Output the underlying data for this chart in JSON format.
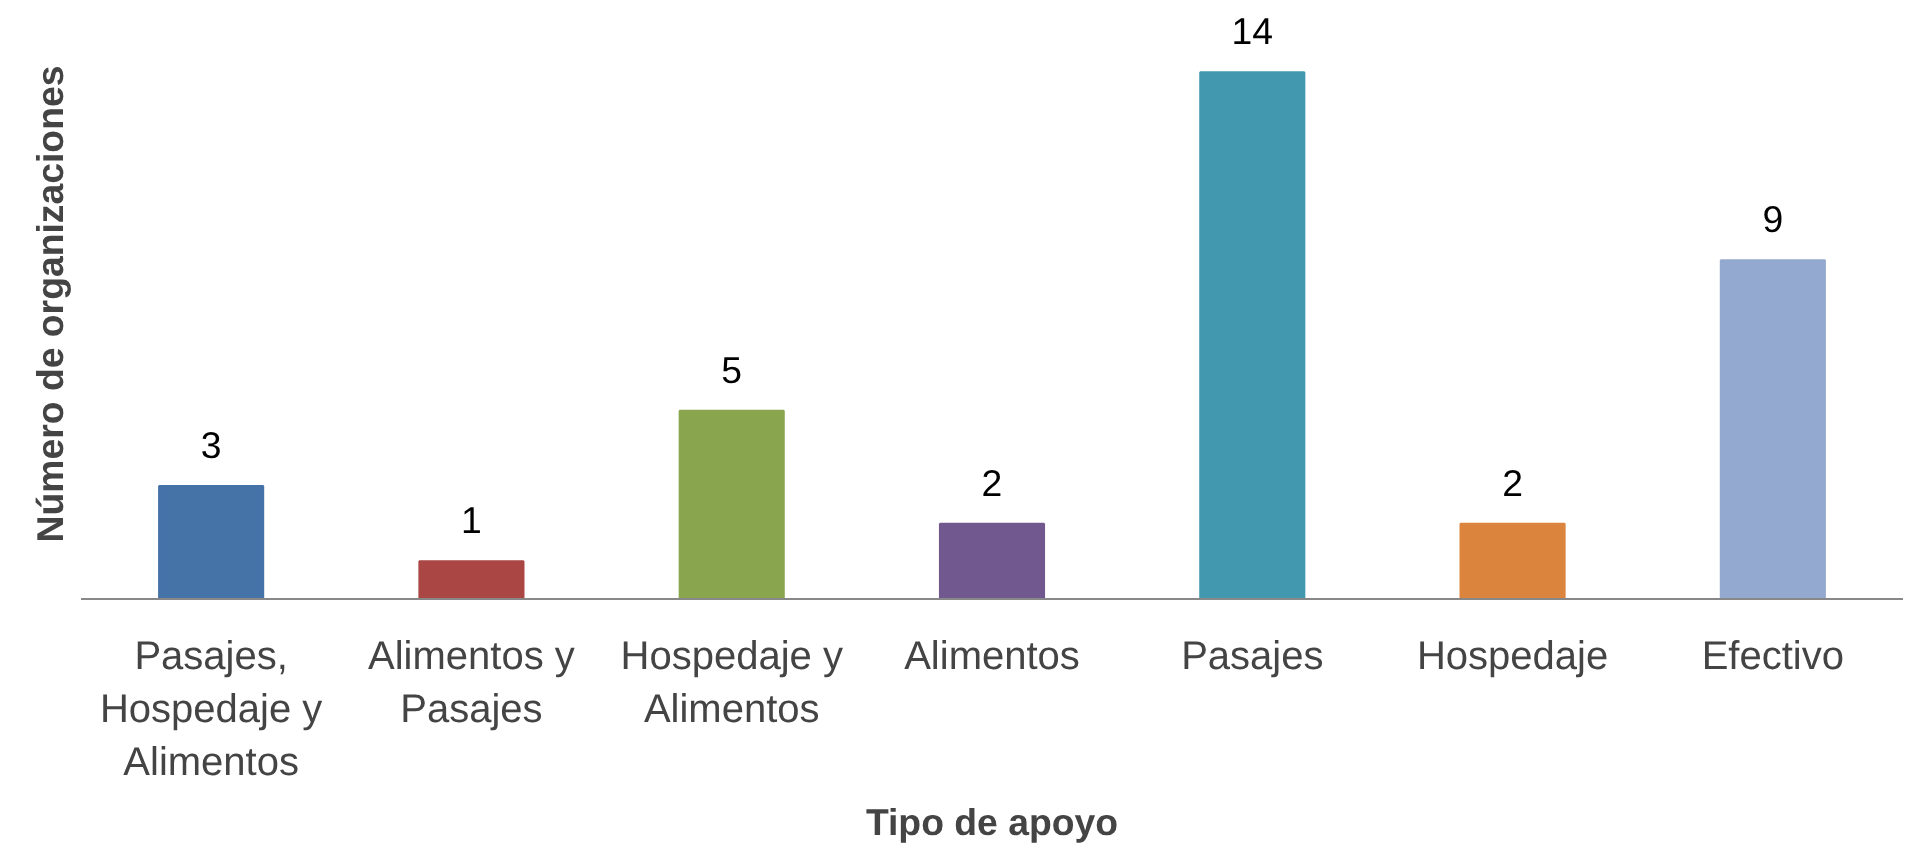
{
  "chart_data": {
    "type": "bar",
    "xlabel": "Tipo de apoyo",
    "ylabel": "Número de organizaciones",
    "categories": [
      "Pasajes, Hospedaje y Alimentos",
      "Alimentos y Pasajes",
      "Hospedaje y Alimentos",
      "Alimentos",
      "Pasajes",
      "Hospedaje",
      "Efectivo"
    ],
    "values": [
      3,
      1,
      5,
      2,
      14,
      2,
      9
    ],
    "colors": [
      "#4572a7",
      "#aa4643",
      "#89a54e",
      "#71588f",
      "#4198af",
      "#db843d",
      "#93a9cf"
    ],
    "data_labels": true,
    "grid": false
  }
}
